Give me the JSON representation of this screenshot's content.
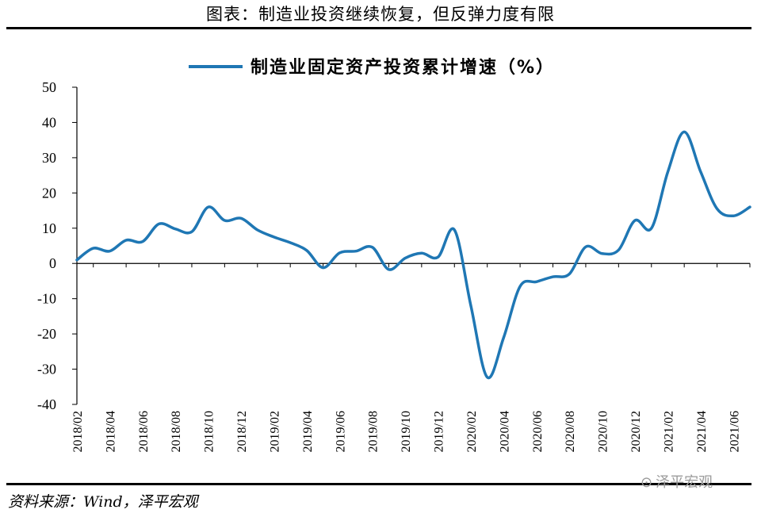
{
  "figure": {
    "title": "图表：制造业投资继续恢复，但反弹力度有限",
    "source": "资料来源：Wind，泽平宏观",
    "watermark": "泽平宏观",
    "watermark_icon": "wechat-icon"
  },
  "chart_data": {
    "type": "line",
    "legend_position": "top-center",
    "grid": false,
    "ylim": [
      -40,
      50
    ],
    "yticks": [
      50,
      40,
      30,
      20,
      10,
      0,
      -10,
      -20,
      -30,
      -40
    ],
    "xtick_labels": [
      "2018/02",
      "2018/04",
      "2018/06",
      "2018/08",
      "2018/10",
      "2018/12",
      "2019/02",
      "2019/04",
      "2019/06",
      "2019/08",
      "2019/10",
      "2019/12",
      "2020/02",
      "2020/04",
      "2020/06",
      "2020/08",
      "2020/10",
      "2020/12",
      "2021/02",
      "2021/04",
      "2021/06"
    ],
    "x": [
      "2018/02",
      "2018/03",
      "2018/04",
      "2018/05",
      "2018/06",
      "2018/07",
      "2018/08",
      "2018/09",
      "2018/10",
      "2018/11",
      "2018/12",
      "2019/01",
      "2019/02",
      "2019/03",
      "2019/04",
      "2019/05",
      "2019/06",
      "2019/07",
      "2019/08",
      "2019/09",
      "2019/10",
      "2019/11",
      "2019/12",
      "2020/01",
      "2020/02",
      "2020/03",
      "2020/04",
      "2020/05",
      "2020/06",
      "2020/07",
      "2020/08",
      "2020/09",
      "2020/10",
      "2020/11",
      "2020/12",
      "2021/01",
      "2021/02",
      "2021/03",
      "2021/04",
      "2021/05",
      "2021/06",
      "2021/07"
    ],
    "series": [
      {
        "name": "制造业固定资产投资累计增速（%）",
        "color": "#1f77b4",
        "values": [
          1.0,
          4.3,
          3.5,
          6.6,
          6.2,
          11.2,
          9.8,
          9.0,
          16.0,
          12.2,
          12.8,
          9.5,
          7.5,
          5.9,
          3.7,
          -1.2,
          3.0,
          3.5,
          4.6,
          -1.7,
          1.5,
          2.9,
          1.8,
          9.5,
          -12.0,
          -32.3,
          -21.0,
          -6.5,
          -5.2,
          -3.8,
          -3.0,
          4.7,
          2.8,
          3.8,
          12.2,
          10.0,
          26.0,
          37.3,
          26.0,
          15.5,
          13.5,
          16.0
        ]
      }
    ]
  }
}
